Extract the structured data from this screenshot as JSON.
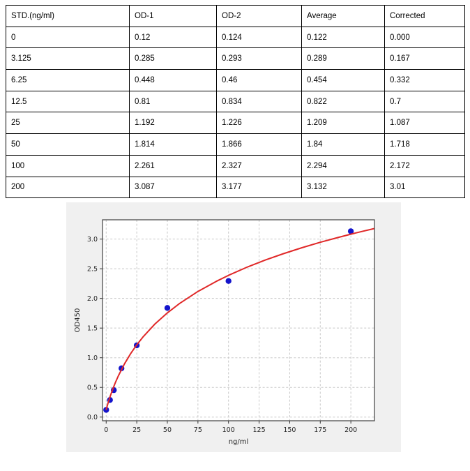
{
  "table": {
    "headers": [
      "STD.(ng/ml)",
      "OD-1",
      "OD-2",
      "Average",
      "Corrected"
    ],
    "rows": [
      [
        "0",
        "0.12",
        "0.124",
        "0.122",
        "0.000"
      ],
      [
        "3.125",
        "0.285",
        "0.293",
        "0.289",
        "0.167"
      ],
      [
        "6.25",
        "0.448",
        "0.46",
        "0.454",
        "0.332"
      ],
      [
        "12.5",
        "0.81",
        "0.834",
        "0.822",
        "0.7"
      ],
      [
        "25",
        "1.192",
        "1.226",
        "1.209",
        "1.087"
      ],
      [
        "50",
        "1.814",
        "1.866",
        "1.84",
        "1.718"
      ],
      [
        "100",
        "2.261",
        "2.327",
        "2.294",
        "2.172"
      ],
      [
        "200",
        "3.087",
        "3.177",
        "3.132",
        "3.01"
      ]
    ]
  },
  "chart_data": {
    "type": "scatter",
    "title": "",
    "xlabel": "ng/ml",
    "ylabel": "OD450",
    "xlim": [
      -3,
      219.3
    ],
    "ylim": [
      -0.062,
      3.325
    ],
    "grid": true,
    "grid_style": "dashed",
    "legend_position": "none",
    "x_ticks": {
      "values": [
        0,
        25,
        50,
        75,
        100,
        125,
        150,
        175,
        200
      ],
      "labels": [
        "0",
        "25",
        "50",
        "75",
        "100",
        "125",
        "150",
        "175",
        "200"
      ]
    },
    "y_ticks": {
      "values": [
        0.0,
        0.5,
        1.0,
        1.5,
        2.0,
        2.5,
        3.0
      ],
      "labels": [
        "0.0",
        "0.5",
        "1.0",
        "1.5",
        "2.0",
        "2.5",
        "3.0"
      ]
    },
    "series": [
      {
        "name": "standard-points",
        "type": "scatter",
        "color": "#1414cc",
        "marker_radius": 4.2,
        "x": [
          0,
          3.125,
          6.25,
          12.5,
          25,
          50,
          100,
          200
        ],
        "y": [
          0.122,
          0.289,
          0.454,
          0.822,
          1.209,
          1.84,
          2.294,
          3.132
        ]
      },
      {
        "name": "fitted-curve",
        "type": "line",
        "color": "#e02828",
        "line_width": 2,
        "x": [
          0,
          2.5,
          5,
          7.5,
          10,
          15,
          20,
          25,
          30,
          40,
          50,
          60,
          75,
          90,
          100,
          115,
          130,
          145,
          160,
          175,
          190,
          200,
          210,
          219
        ],
        "y": [
          0.13,
          0.301,
          0.449,
          0.58,
          0.696,
          0.899,
          1.07,
          1.218,
          1.348,
          1.571,
          1.756,
          1.915,
          2.117,
          2.288,
          2.389,
          2.525,
          2.646,
          2.755,
          2.854,
          2.946,
          3.03,
          3.083,
          3.133,
          3.177
        ]
      }
    ]
  },
  "colors": {
    "figure_background": "#f0f0f0",
    "plot_background": "#ffffff",
    "grid": "#c8c8c8",
    "spine": "#4d4d4d",
    "tick": "#333333",
    "curve": "#e02828",
    "points": "#1414cc",
    "table_border": "#000000",
    "table_text": "#000000"
  }
}
